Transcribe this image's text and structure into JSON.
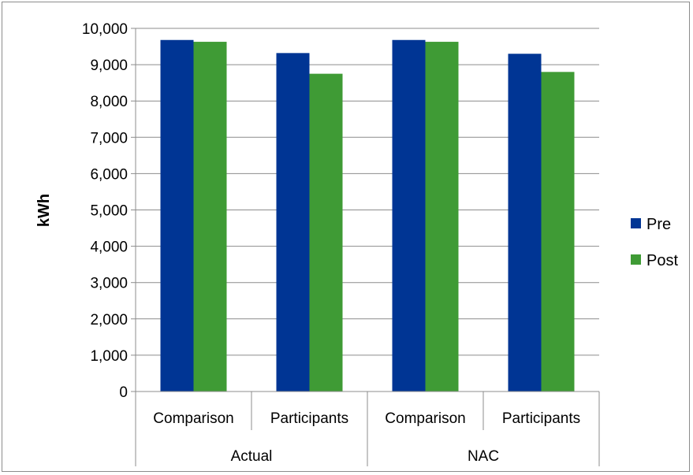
{
  "chart_data": {
    "type": "bar",
    "title": "",
    "xlabel": "",
    "ylabel": "kWh",
    "ylim": [
      0,
      10000
    ],
    "yticks": [
      0,
      1000,
      2000,
      3000,
      4000,
      5000,
      6000,
      7000,
      8000,
      9000,
      10000
    ],
    "ytick_labels": [
      "0",
      "1,000",
      "2,000",
      "3,000",
      "4,000",
      "5,000",
      "6,000",
      "7,000",
      "8,000",
      "9,000",
      "10,000"
    ],
    "grid": true,
    "legend_position": "right",
    "groups": [
      "Actual",
      "NAC"
    ],
    "categories": [
      "Comparison",
      "Participants",
      "Comparison",
      "Participants"
    ],
    "category_group": [
      "Actual",
      "Actual",
      "NAC",
      "NAC"
    ],
    "series": [
      {
        "name": "Pre",
        "color": "#003594",
        "values": [
          9680,
          9320,
          9680,
          9300
        ]
      },
      {
        "name": "Post",
        "color": "#3f9b35",
        "values": [
          9630,
          8750,
          9630,
          8800
        ]
      }
    ]
  }
}
